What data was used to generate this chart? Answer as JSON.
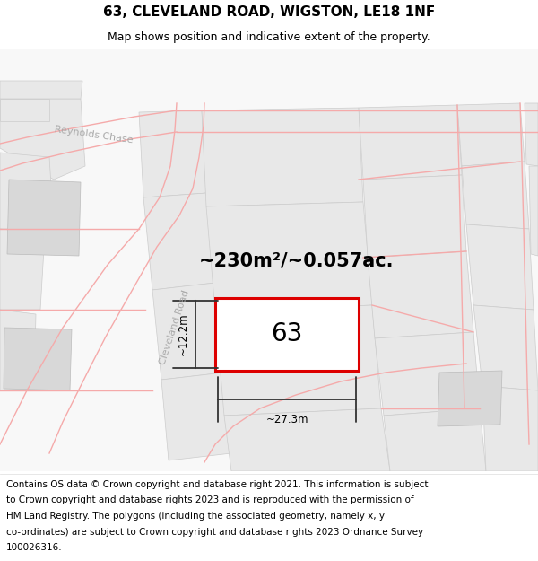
{
  "title": "63, CLEVELAND ROAD, WIGSTON, LE18 1NF",
  "subtitle": "Map shows position and indicative extent of the property.",
  "footer_lines": [
    "Contains OS data © Crown copyright and database right 2021. This information is subject",
    "to Crown copyright and database rights 2023 and is reproduced with the permission of",
    "HM Land Registry. The polygons (including the associated geometry, namely x, y",
    "co-ordinates) are subject to Crown copyright and database rights 2023 Ordnance Survey",
    "100026316."
  ],
  "area_text": "~230m²/~0.057ac.",
  "dim_horiz": "~27.3m",
  "dim_vert": "~12.2m",
  "property_label": "63",
  "map_bg": "#fafafa",
  "road_line_color": "#f5aaaa",
  "parcel_edge_color": "#cccccc",
  "building_fill": "#e0e0e0",
  "property_rect_color": "#dd0000",
  "dim_color": "#333333",
  "label_color": "#aaaaaa",
  "title_fontsize": 11,
  "subtitle_fontsize": 9,
  "footer_fontsize": 7.5,
  "area_fontsize": 15,
  "label_fontsize": 8,
  "property_num_fontsize": 20
}
